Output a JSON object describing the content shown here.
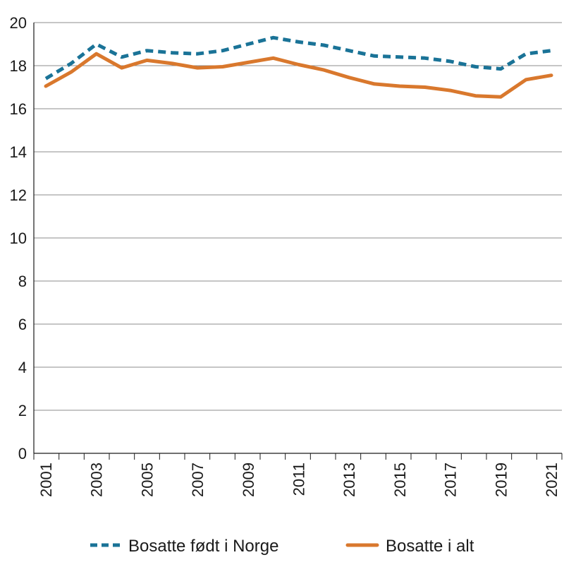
{
  "chart_data": {
    "type": "line",
    "x": [
      "2001",
      "2002",
      "2003",
      "2004",
      "2005",
      "2006",
      "2007",
      "2008",
      "2009",
      "2010",
      "2011",
      "2012",
      "2013",
      "2014",
      "2015",
      "2016",
      "2017",
      "2018",
      "2019",
      "2020",
      "2021"
    ],
    "x_tick_labels": [
      "2001",
      "2003",
      "2005",
      "2007",
      "2009",
      "2011",
      "2013",
      "2015",
      "2017",
      "2019",
      "2021"
    ],
    "series": [
      {
        "name": "Bosatte født i Norge",
        "color": "#1a7397",
        "style": "dashed",
        "values": [
          17.4,
          18.1,
          19.0,
          18.4,
          18.7,
          18.6,
          18.55,
          18.7,
          19.0,
          19.3,
          19.1,
          18.95,
          18.7,
          18.45,
          18.4,
          18.35,
          18.2,
          17.95,
          17.85,
          18.55,
          18.7
        ]
      },
      {
        "name": "Bosatte i alt",
        "color": "#d9782d",
        "style": "solid",
        "values": [
          17.05,
          17.7,
          18.55,
          17.9,
          18.25,
          18.1,
          17.9,
          17.95,
          18.15,
          18.35,
          18.05,
          17.8,
          17.45,
          17.15,
          17.05,
          17.0,
          16.85,
          16.6,
          16.55,
          17.35,
          17.55
        ]
      }
    ],
    "y_ticks": [
      "0",
      "2",
      "4",
      "6",
      "8",
      "10",
      "12",
      "14",
      "16",
      "18",
      "20"
    ],
    "ylim": [
      0,
      20
    ],
    "grid": "horizontal",
    "legend_position": "bottom"
  }
}
